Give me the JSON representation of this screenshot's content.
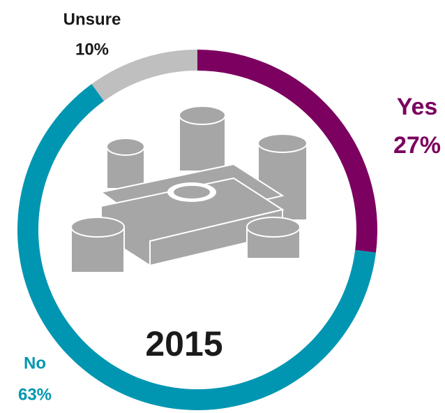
{
  "chart_data": {
    "type": "donut",
    "categories": [
      "Yes",
      "No",
      "Unsure"
    ],
    "values": [
      27,
      63,
      10
    ],
    "value_labels": [
      "27%",
      "63%",
      "10%"
    ],
    "colors": [
      "#7b005f",
      "#0096b1",
      "#bfbfbf"
    ],
    "center_label": "2015"
  }
}
